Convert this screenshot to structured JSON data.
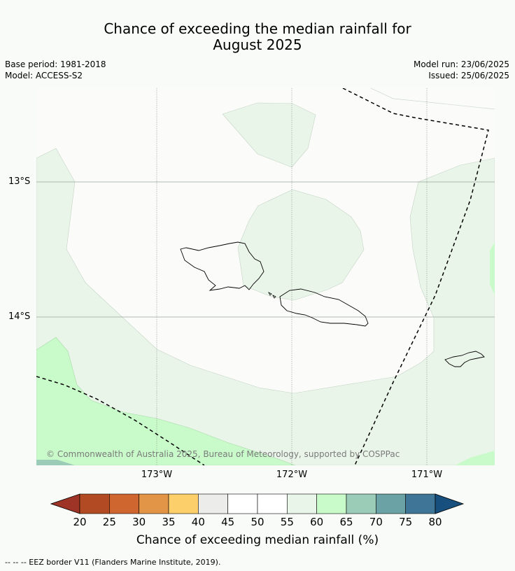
{
  "title": {
    "line1": "Chance of exceeding the median rainfall for",
    "line2": "August 2025"
  },
  "meta": {
    "base_period": "Base period: 1981-2018",
    "model": "Model: ACCESS-S2",
    "model_run": "Model run: 23/06/2025",
    "issued": "Issued: 25/06/2025"
  },
  "map": {
    "lat_labels": [
      "13°S",
      "14°S"
    ],
    "lon_labels": [
      "173°W",
      "172°W",
      "171°W"
    ],
    "copyright": "© Commonwealth of Australia 2025, Bureau of Meteorology, supported by COSPPac"
  },
  "colorbar": {
    "ticks": [
      "20",
      "25",
      "30",
      "35",
      "40",
      "45",
      "50",
      "55",
      "60",
      "65",
      "70",
      "75",
      "80"
    ],
    "colors": [
      "#b24a24",
      "#cf652f",
      "#e39547",
      "#fdcf6a",
      "#ececea",
      "#ffffff",
      "#ffffff",
      "#e9f5e8",
      "#c9fbca",
      "#9bccb7",
      "#6aa2a6",
      "#3f7597"
    ],
    "low_color": "#9e3426",
    "high_color": "#17507e",
    "label": "Chance of exceeding median rainfall (%)"
  },
  "footnote": "--  --  -- EEZ border V11 (Flanders Marine Institute, 2019)."
}
